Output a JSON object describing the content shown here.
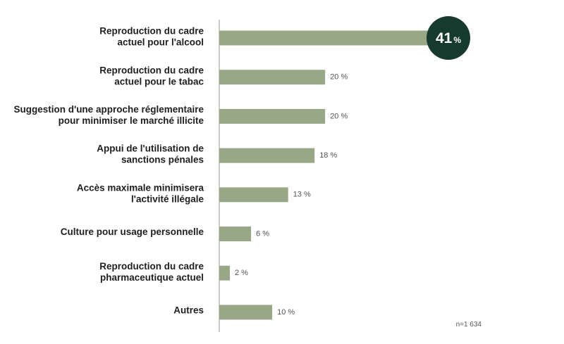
{
  "chart_data": {
    "type": "bar",
    "orientation": "horizontal",
    "categories": [
      [
        "Reproduction du cadre",
        "actuel pour l'alcool"
      ],
      [
        "Reproduction du cadre",
        "actuel pour le tabac"
      ],
      [
        "Suggestion d'une approche réglementaire",
        "pour minimiser le marché illicite"
      ],
      [
        "Appui de l'utilisation de",
        "sanctions pénales"
      ],
      [
        "Accès maximale minimisera",
        "l'activité illégale"
      ],
      [
        "Culture pour usage personnelle"
      ],
      [
        "Reproduction du cadre",
        "pharmaceutique actuel"
      ],
      [
        "Autres"
      ]
    ],
    "values": [
      41,
      20,
      20,
      18,
      13,
      6,
      2,
      10
    ],
    "value_labels": [
      "41",
      "20 %",
      "20 %",
      "18 %",
      "13 %",
      "6 %",
      "2 %",
      "10 %"
    ],
    "highlight": {
      "index": 0,
      "number": "41",
      "unit": "%"
    },
    "note": "n=1 634",
    "xlim": [
      0,
      41
    ],
    "grid": false,
    "colors": {
      "bar": "#98a886",
      "highlight_circle": "#173a2e",
      "axis": "#9a9a9a"
    }
  }
}
